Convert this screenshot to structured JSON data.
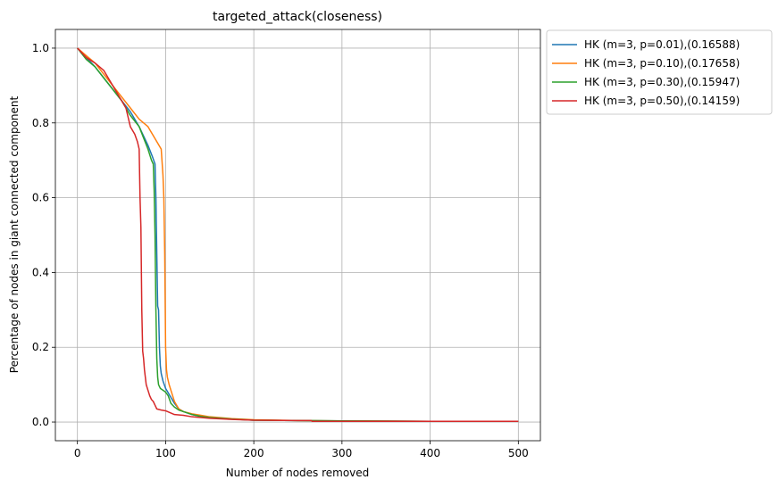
{
  "chart_data": {
    "type": "line",
    "title": "targeted_attack(closeness)",
    "xlabel": "Number of nodes removed",
    "ylabel": "Percentage of nodes in giant connected component",
    "xlim": [
      -25,
      525
    ],
    "ylim": [
      -0.05,
      1.05
    ],
    "xticks": [
      0,
      100,
      200,
      300,
      400,
      500
    ],
    "xtick_labels": [
      "0",
      "100",
      "200",
      "300",
      "400",
      "500"
    ],
    "yticks": [
      0.0,
      0.2,
      0.4,
      0.6,
      0.8,
      1.0
    ],
    "ytick_labels": [
      "0.0",
      "0.2",
      "0.4",
      "0.6",
      "0.8",
      "1.0"
    ],
    "grid": true,
    "legend_position": "outside-top-right",
    "series": [
      {
        "name": "HK (m=3, p=0.01),(0.16588)",
        "color": "#1f77b4",
        "points": [
          [
            0,
            1.0
          ],
          [
            10,
            0.975
          ],
          [
            20,
            0.95
          ],
          [
            30,
            0.92
          ],
          [
            40,
            0.89
          ],
          [
            50,
            0.86
          ],
          [
            60,
            0.83
          ],
          [
            70,
            0.79
          ],
          [
            80,
            0.74
          ],
          [
            85,
            0.71
          ],
          [
            88,
            0.69
          ],
          [
            89,
            0.6
          ],
          [
            90,
            0.45
          ],
          [
            91,
            0.31
          ],
          [
            92,
            0.3
          ],
          [
            93,
            0.2
          ],
          [
            94,
            0.15
          ],
          [
            95,
            0.13
          ],
          [
            97,
            0.11
          ],
          [
            100,
            0.09
          ],
          [
            105,
            0.07
          ],
          [
            110,
            0.05
          ],
          [
            115,
            0.035
          ],
          [
            120,
            0.028
          ],
          [
            130,
            0.02
          ],
          [
            140,
            0.015
          ],
          [
            150,
            0.012
          ],
          [
            175,
            0.008
          ],
          [
            200,
            0.005
          ],
          [
            250,
            0.004
          ],
          [
            300,
            0.003
          ],
          [
            400,
            0.002
          ],
          [
            500,
            0.002
          ]
        ]
      },
      {
        "name": "HK (m=3, p=0.10),(0.17658)",
        "color": "#ff7f0e",
        "points": [
          [
            0,
            1.0
          ],
          [
            10,
            0.98
          ],
          [
            20,
            0.96
          ],
          [
            30,
            0.93
          ],
          [
            40,
            0.9
          ],
          [
            50,
            0.87
          ],
          [
            60,
            0.84
          ],
          [
            70,
            0.81
          ],
          [
            80,
            0.79
          ],
          [
            85,
            0.77
          ],
          [
            90,
            0.75
          ],
          [
            95,
            0.73
          ],
          [
            97,
            0.66
          ],
          [
            98,
            0.6
          ],
          [
            99,
            0.45
          ],
          [
            100,
            0.2
          ],
          [
            101,
            0.14
          ],
          [
            102,
            0.12
          ],
          [
            104,
            0.1
          ],
          [
            106,
            0.085
          ],
          [
            108,
            0.07
          ],
          [
            110,
            0.055
          ],
          [
            115,
            0.035
          ],
          [
            120,
            0.028
          ],
          [
            130,
            0.022
          ],
          [
            140,
            0.018
          ],
          [
            150,
            0.014
          ],
          [
            175,
            0.009
          ],
          [
            200,
            0.006
          ],
          [
            250,
            0.004
          ],
          [
            300,
            0.003
          ],
          [
            400,
            0.002
          ],
          [
            500,
            0.002
          ]
        ]
      },
      {
        "name": "HK (m=3, p=0.30),(0.15947)",
        "color": "#2ca02c",
        "points": [
          [
            0,
            1.0
          ],
          [
            10,
            0.97
          ],
          [
            20,
            0.95
          ],
          [
            30,
            0.92
          ],
          [
            40,
            0.89
          ],
          [
            50,
            0.86
          ],
          [
            60,
            0.82
          ],
          [
            70,
            0.79
          ],
          [
            75,
            0.76
          ],
          [
            80,
            0.73
          ],
          [
            84,
            0.7
          ],
          [
            86,
            0.69
          ],
          [
            87,
            0.62
          ],
          [
            88,
            0.5
          ],
          [
            89,
            0.3
          ],
          [
            90,
            0.17
          ],
          [
            91,
            0.12
          ],
          [
            92,
            0.1
          ],
          [
            94,
            0.09
          ],
          [
            97,
            0.085
          ],
          [
            100,
            0.08
          ],
          [
            103,
            0.07
          ],
          [
            106,
            0.05
          ],
          [
            110,
            0.04
          ],
          [
            115,
            0.032
          ],
          [
            120,
            0.028
          ],
          [
            130,
            0.02
          ],
          [
            140,
            0.015
          ],
          [
            150,
            0.012
          ],
          [
            175,
            0.008
          ],
          [
            200,
            0.005
          ],
          [
            250,
            0.004
          ],
          [
            300,
            0.003
          ],
          [
            400,
            0.002
          ],
          [
            500,
            0.002
          ]
        ]
      },
      {
        "name": "HK (m=3, p=0.50),(0.14159)",
        "color": "#d62728",
        "points": [
          [
            0,
            1.0
          ],
          [
            10,
            0.975
          ],
          [
            20,
            0.96
          ],
          [
            30,
            0.94
          ],
          [
            40,
            0.9
          ],
          [
            50,
            0.86
          ],
          [
            55,
            0.84
          ],
          [
            60,
            0.79
          ],
          [
            65,
            0.77
          ],
          [
            68,
            0.75
          ],
          [
            70,
            0.73
          ],
          [
            71,
            0.6
          ],
          [
            72,
            0.52
          ],
          [
            73,
            0.3
          ],
          [
            74,
            0.19
          ],
          [
            75,
            0.17
          ],
          [
            76,
            0.14
          ],
          [
            77,
            0.12
          ],
          [
            78,
            0.1
          ],
          [
            80,
            0.085
          ],
          [
            82,
            0.07
          ],
          [
            84,
            0.06
          ],
          [
            86,
            0.055
          ],
          [
            88,
            0.045
          ],
          [
            90,
            0.035
          ],
          [
            95,
            0.032
          ],
          [
            100,
            0.03
          ],
          [
            105,
            0.025
          ],
          [
            110,
            0.02
          ],
          [
            120,
            0.018
          ],
          [
            130,
            0.014
          ],
          [
            150,
            0.01
          ],
          [
            175,
            0.007
          ],
          [
            200,
            0.005
          ],
          [
            250,
            0.004
          ],
          [
            265,
            0.004
          ],
          [
            266,
            0.002
          ],
          [
            300,
            0.002
          ],
          [
            400,
            0.002
          ],
          [
            500,
            0.002
          ]
        ]
      }
    ]
  }
}
